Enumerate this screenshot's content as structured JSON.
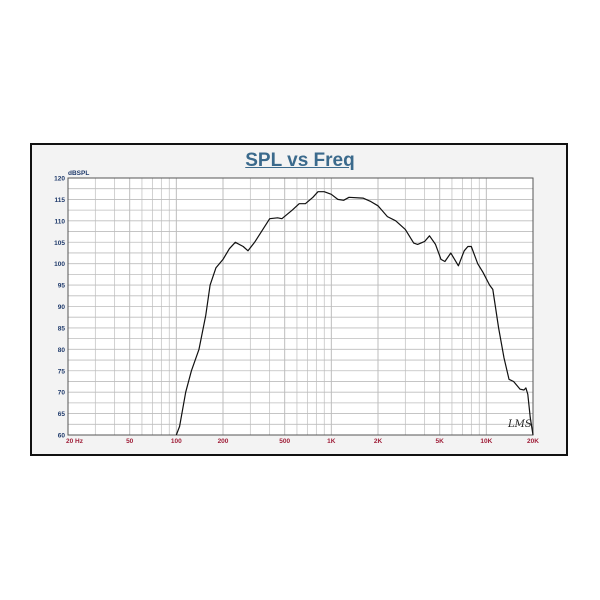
{
  "chart_data": {
    "type": "line",
    "title": "SPL vs Freq",
    "ylabel": "dBSPL",
    "xlabel": "",
    "x_scale": "log",
    "xlim": [
      20,
      20000
    ],
    "ylim": [
      60,
      120
    ],
    "grid": true,
    "x_tick_labels": [
      {
        "value": 20,
        "label": "20  Hz"
      },
      {
        "value": 50,
        "label": "50"
      },
      {
        "value": 100,
        "label": "100"
      },
      {
        "value": 200,
        "label": "200"
      },
      {
        "value": 500,
        "label": "500"
      },
      {
        "value": 1000,
        "label": "1K"
      },
      {
        "value": 2000,
        "label": "2K"
      },
      {
        "value": 5000,
        "label": "5K"
      },
      {
        "value": 10000,
        "label": "10K"
      },
      {
        "value": 20000,
        "label": "20K"
      }
    ],
    "y_ticks": [
      60,
      65,
      70,
      75,
      80,
      85,
      90,
      95,
      100,
      105,
      110,
      115,
      120
    ],
    "annotation": "LMS",
    "colors": {
      "line": "#111111",
      "title": "#3b6a8c",
      "x_labels": "#a0203a",
      "y_labels": "#1f3a6b",
      "grid": "#bdbdbd"
    },
    "series": [
      {
        "x": [
          100,
          105,
          115,
          125,
          140,
          155,
          165,
          180,
          200,
          220,
          240,
          270,
          290,
          320,
          400,
          450,
          480,
          560,
          620,
          680,
          760,
          820,
          900,
          1000,
          1100,
          1200,
          1300,
          1600,
          1800,
          2000,
          2300,
          2600,
          3000,
          3400,
          3600,
          4000,
          4300,
          4700,
          5100,
          5400,
          5900,
          6600,
          7200,
          7600,
          8000,
          8800,
          9500,
          10500,
          11000,
          12000,
          13000,
          14000,
          15000,
          16500,
          17500,
          18000,
          18500,
          19200,
          20000
        ],
        "y": [
          60,
          62,
          70,
          75,
          80,
          88,
          95,
          99,
          101,
          103.5,
          105,
          104,
          103,
          105,
          110.5,
          110.7,
          110.5,
          112.5,
          114,
          114,
          115.5,
          116.8,
          116.8,
          116.2,
          115,
          114.8,
          115.5,
          115.3,
          114.5,
          113.5,
          111,
          110,
          108,
          104.8,
          104.5,
          105.2,
          106.5,
          104.5,
          101,
          100.5,
          102.5,
          99.5,
          103,
          104,
          104,
          100,
          98,
          95,
          94,
          85,
          78,
          73,
          72.5,
          70.7,
          70.5,
          71,
          69.5,
          64,
          60
        ]
      }
    ]
  }
}
